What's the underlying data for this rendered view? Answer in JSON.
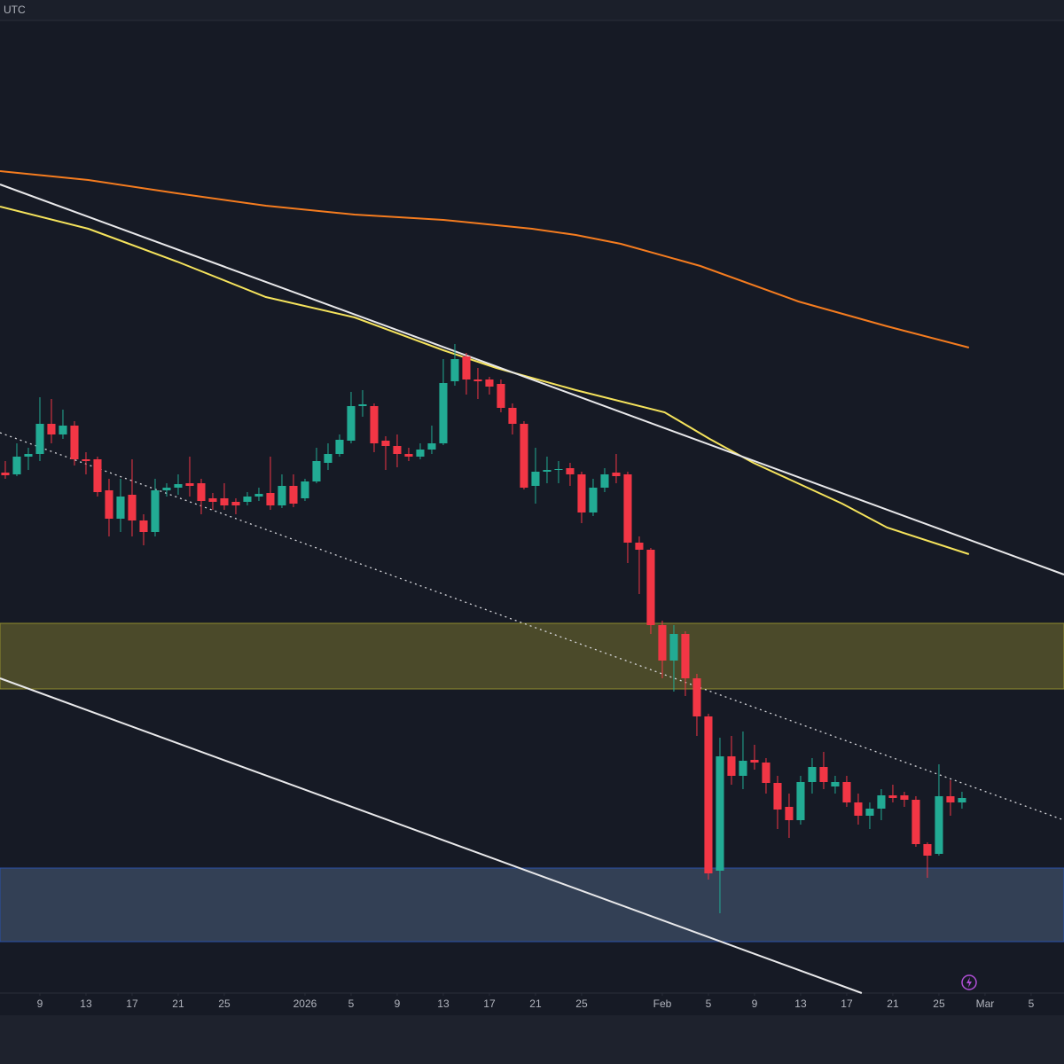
{
  "chart_data": {
    "type": "candlestick",
    "timezone_label": "UTC",
    "up_color": "#22ab94",
    "down_color": "#f23645",
    "xlim": [
      -0.46,
      91.85
    ],
    "ylim": [
      80,
      1175
    ],
    "xticks": [
      {
        "value": 3,
        "label": "9"
      },
      {
        "value": 7,
        "label": "13"
      },
      {
        "value": 11,
        "label": "17"
      },
      {
        "value": 15,
        "label": "21"
      },
      {
        "value": 19,
        "label": "25"
      },
      {
        "value": 26,
        "label": "2026"
      },
      {
        "value": 30,
        "label": "5"
      },
      {
        "value": 34,
        "label": "9"
      },
      {
        "value": 38,
        "label": "13"
      },
      {
        "value": 42,
        "label": "17"
      },
      {
        "value": 46,
        "label": "21"
      },
      {
        "value": 50,
        "label": "25"
      },
      {
        "value": 57,
        "label": "Feb"
      },
      {
        "value": 61,
        "label": "5"
      },
      {
        "value": 65,
        "label": "9"
      },
      {
        "value": 69,
        "label": "13"
      },
      {
        "value": 73,
        "label": "17"
      },
      {
        "value": 77,
        "label": "21"
      },
      {
        "value": 81,
        "label": "25"
      },
      {
        "value": 85,
        "label": "Mar"
      },
      {
        "value": 89,
        "label": "5"
      }
    ],
    "open": [
      667,
      665,
      685,
      688,
      722,
      710,
      720,
      682,
      682,
      647,
      615,
      642,
      613,
      600,
      647,
      650,
      655,
      655,
      638,
      638,
      634,
      634,
      640,
      644,
      630,
      652,
      638,
      657,
      678,
      688,
      703,
      742,
      742,
      703,
      697,
      688,
      685,
      693,
      700,
      770,
      798,
      772,
      772,
      767,
      740,
      722,
      652,
      668,
      670,
      672,
      665,
      622,
      650,
      667,
      665,
      588,
      580,
      495,
      455,
      485,
      435,
      392,
      218,
      347,
      325,
      343,
      340,
      317,
      290,
      275,
      318,
      335,
      313,
      318,
      295,
      280,
      288,
      303,
      303,
      298,
      248,
      237,
      302,
      295
    ],
    "high": [
      680,
      700,
      695,
      752,
      750,
      738,
      725,
      690,
      685,
      660,
      660,
      682,
      620,
      660,
      655,
      665,
      685,
      660,
      644,
      655,
      638,
      645,
      650,
      685,
      665,
      665,
      660,
      695,
      700,
      710,
      758,
      760,
      745,
      708,
      710,
      695,
      700,
      720,
      795,
      812,
      802,
      785,
      775,
      772,
      745,
      725,
      695,
      685,
      680,
      678,
      668,
      660,
      672,
      688,
      668,
      595,
      582,
      500,
      495,
      488,
      440,
      395,
      368,
      370,
      375,
      360,
      345,
      325,
      305,
      325,
      345,
      352,
      325,
      325,
      305,
      295,
      310,
      315,
      307,
      302,
      250,
      338,
      320,
      307
    ],
    "low": [
      660,
      663,
      670,
      680,
      700,
      705,
      675,
      665,
      640,
      595,
      600,
      595,
      585,
      595,
      640,
      642,
      640,
      620,
      625,
      625,
      620,
      630,
      635,
      625,
      627,
      628,
      635,
      655,
      670,
      685,
      700,
      730,
      690,
      670,
      673,
      680,
      682,
      688,
      698,
      765,
      755,
      750,
      755,
      735,
      710,
      648,
      632,
      655,
      655,
      652,
      610,
      618,
      645,
      655,
      565,
      530,
      485,
      435,
      420,
      415,
      370,
      208,
      170,
      315,
      310,
      332,
      305,
      265,
      255,
      270,
      305,
      310,
      305,
      290,
      270,
      265,
      275,
      295,
      290,
      245,
      210,
      235,
      280,
      288
    ],
    "close": [
      664,
      685,
      688,
      722,
      710,
      720,
      682,
      680,
      645,
      615,
      640,
      613,
      600,
      647,
      650,
      654,
      652,
      635,
      634,
      630,
      630,
      640,
      643,
      630,
      652,
      632,
      657,
      680,
      688,
      704,
      742,
      744,
      700,
      697,
      688,
      685,
      693,
      700,
      768,
      795,
      772,
      770,
      764,
      740,
      722,
      650,
      668,
      670,
      671,
      665,
      622,
      650,
      665,
      663,
      588,
      580,
      495,
      455,
      485,
      435,
      392,
      215,
      347,
      325,
      342,
      340,
      317,
      287,
      275,
      318,
      335,
      318,
      318,
      295,
      280,
      288,
      303,
      300,
      298,
      248,
      235,
      302,
      295,
      300
    ],
    "lines": [
      {
        "color": "#f57c1f",
        "style": "solid",
        "x": [
          -0.46,
          7.2,
          14.9,
          22.6,
          30.3,
          38,
          45.7,
          49.5,
          53.4,
          60.3,
          68.8,
          76.5,
          83.6
        ],
        "values": [
          1007,
          997,
          982,
          968,
          958,
          952,
          942,
          935,
          925,
          900,
          860,
          832,
          808
        ]
      },
      {
        "color": "#f5e35c",
        "style": "solid",
        "x": [
          -0.46,
          7.2,
          14.9,
          22.6,
          30.3,
          38,
          42.6,
          49.5,
          57.2,
          61.1,
          64.9,
          72.6,
          76.5,
          83.6
        ],
        "values": [
          967,
          942,
          905,
          865,
          842,
          805,
          785,
          760,
          735,
          705,
          678,
          632,
          605,
          575
        ]
      },
      {
        "color": "#e8e8ea",
        "style": "solid",
        "x": [
          -0.46,
          91.85
        ],
        "values": [
          992,
          552
        ]
      },
      {
        "color": "#e8e8ea",
        "style": "solid",
        "x": [
          -0.46,
          74.3
        ],
        "values": [
          435,
          80
        ]
      },
      {
        "color": "#d8d8dc",
        "style": "dotted",
        "x": [
          -0.46,
          91.85
        ],
        "values": [
          712,
          275
        ]
      }
    ],
    "zones": [
      {
        "color": "#4b4a2a",
        "edge": "#8f8a2f",
        "range": [
          423,
          497
        ]
      },
      {
        "color": "#334055",
        "edge": "#2a4fa8",
        "range": [
          138,
          221
        ]
      }
    ]
  }
}
